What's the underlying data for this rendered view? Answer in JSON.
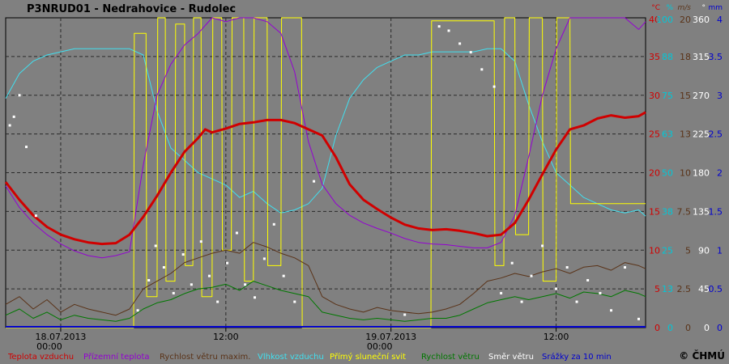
{
  "chart_data": {
    "type": "line",
    "title": "P3NRUD01 - Nedrahovice - Rudolec",
    "x_ticks": [
      {
        "t": 4,
        "label": "18.07.2013",
        "label2": "00:00"
      },
      {
        "t": 16,
        "label": "12:00"
      },
      {
        "t": 28,
        "label": "19.07.2013",
        "label2": "00:00"
      },
      {
        "t": 40,
        "label": "12:00"
      }
    ],
    "x_range_hours": [
      0,
      46.5
    ],
    "y_axes": [
      {
        "unit": "°C",
        "color": "#d00000",
        "ticks": [
          "40",
          "35",
          "30",
          "25",
          "20",
          "15",
          "10",
          "5",
          "0"
        ]
      },
      {
        "unit": "%",
        "color": "#00c8d8",
        "ticks": [
          "100",
          "88",
          "75",
          "63",
          "50",
          "38",
          "25",
          "13",
          "0"
        ]
      },
      {
        "unit": "m/s",
        "color": "#5a3318",
        "ticks": [
          "20",
          "18",
          "15",
          "13",
          "10",
          "7.5",
          "5",
          "2.5",
          "0"
        ]
      },
      {
        "unit": "°",
        "color": "#ffffff",
        "ticks": [
          "360",
          "315",
          "270",
          "225",
          "180",
          "135",
          "90",
          "45",
          "0"
        ]
      },
      {
        "unit": "mm",
        "color": "#0000d0",
        "ticks": [
          "4",
          "3.5",
          "3",
          "2.5",
          "2",
          "1.5",
          "1",
          "0.5",
          "0"
        ]
      }
    ],
    "copyright": "© ČHMÚ",
    "series": [
      {
        "name": "Teplota vzduchu",
        "color": "#d00000",
        "unit": "°C",
        "x": [
          0,
          1,
          2,
          3,
          4,
          5,
          6,
          7,
          8,
          9,
          10,
          11,
          12,
          13,
          14,
          14.5,
          15,
          16,
          17,
          18,
          19,
          20,
          21,
          22,
          23,
          24,
          25,
          26,
          27,
          28,
          29,
          30,
          31,
          32,
          33,
          34,
          35,
          36,
          37,
          38,
          39,
          40,
          41,
          42,
          43,
          44,
          45,
          46,
          46.5
        ],
        "y": [
          18.8,
          16.5,
          14.5,
          13.0,
          12.0,
          11.4,
          11.0,
          10.8,
          10.9,
          12.0,
          14.3,
          17.0,
          20.0,
          22.7,
          24.5,
          25.6,
          25.2,
          25.7,
          26.3,
          26.5,
          26.8,
          26.8,
          26.4,
          25.6,
          24.8,
          22.0,
          18.5,
          16.5,
          15.3,
          14.2,
          13.3,
          12.8,
          12.6,
          12.7,
          12.5,
          12.2,
          11.8,
          12.0,
          13.5,
          16.5,
          19.8,
          23.0,
          25.6,
          26.1,
          27.0,
          27.4,
          27.1,
          27.3,
          27.8
        ]
      },
      {
        "name": "Přízemní teplota",
        "color": "#9400d3",
        "unit": "°C",
        "x": [
          0,
          1,
          2,
          3,
          4,
          5,
          6,
          7,
          8,
          9,
          10,
          11,
          12,
          13,
          14,
          15,
          16,
          17,
          18,
          19,
          20,
          21,
          22,
          23,
          24,
          25,
          26,
          27,
          28,
          29,
          30,
          31,
          32,
          33,
          34,
          35,
          36,
          37,
          38,
          39,
          40,
          41,
          42,
          43,
          44,
          45,
          46,
          46.5
        ],
        "y": [
          18.3,
          15.5,
          13.5,
          12.0,
          10.8,
          9.9,
          9.3,
          9.0,
          9.3,
          9.8,
          21.0,
          30.0,
          34.0,
          36.5,
          38.0,
          40.0,
          39.5,
          40.0,
          40.0,
          39.5,
          38.0,
          33.0,
          24.0,
          18.5,
          16.0,
          14.5,
          13.5,
          12.8,
          12.2,
          11.5,
          11.0,
          10.8,
          10.7,
          10.5,
          10.3,
          10.3,
          11.0,
          14.5,
          22.0,
          30.0,
          36.0,
          40.0,
          40.0,
          40.0,
          40.0,
          40.0,
          38.5,
          39.5
        ]
      },
      {
        "name": "Rychlost větru maxim.",
        "color": "#5a3318",
        "unit": "m/s",
        "x": [
          0,
          1,
          2,
          3,
          4,
          5,
          6,
          7,
          8,
          9,
          10,
          11,
          12,
          13,
          14,
          15,
          16,
          17,
          18,
          19,
          20,
          21,
          22,
          23,
          24,
          25,
          26,
          27,
          28,
          29,
          30,
          31,
          32,
          33,
          34,
          35,
          36,
          37,
          38,
          39,
          40,
          41,
          42,
          43,
          44,
          45,
          46,
          46.5
        ],
        "y": [
          1.5,
          2.0,
          1.2,
          1.8,
          1.0,
          1.5,
          1.2,
          1.0,
          0.8,
          1.2,
          2.5,
          3.0,
          3.5,
          4.2,
          4.5,
          4.8,
          5.0,
          4.8,
          5.5,
          5.2,
          4.8,
          4.5,
          4.0,
          2.0,
          1.5,
          1.2,
          1.0,
          1.3,
          1.1,
          1.0,
          0.9,
          1.0,
          1.2,
          1.5,
          2.2,
          3.0,
          3.2,
          3.5,
          3.3,
          3.6,
          3.8,
          3.5,
          3.9,
          4.0,
          3.7,
          4.2,
          4.0,
          3.8
        ]
      },
      {
        "name": "Vlhkost vzduchu",
        "color": "#40e0f0",
        "unit": "%",
        "x": [
          0,
          1,
          2,
          3,
          4,
          5,
          6,
          7,
          8,
          9,
          10,
          11,
          12,
          13,
          14,
          15,
          16,
          17,
          18,
          19,
          20,
          21,
          22,
          23,
          24,
          25,
          26,
          27,
          28,
          29,
          30,
          31,
          32,
          33,
          34,
          35,
          36,
          37,
          38,
          39,
          40,
          41,
          42,
          43,
          44,
          45,
          46,
          46.5
        ],
        "y": [
          74,
          82,
          86,
          88,
          89,
          90,
          90,
          90,
          90,
          90,
          88,
          70,
          58,
          54,
          50,
          48,
          46,
          42,
          44,
          40,
          37,
          38,
          40,
          45,
          62,
          74,
          80,
          84,
          86,
          88,
          88,
          89,
          89,
          89,
          89,
          90,
          90,
          86,
          72,
          60,
          50,
          46,
          42,
          40,
          38,
          37,
          38,
          36
        ]
      },
      {
        "name": "Přímý sluneční svit",
        "color": "#ffff00",
        "unit": "%",
        "x": [
          0,
          9.3,
          9.35,
          10.2,
          10.25,
          11,
          11.05,
          11.6,
          11.65,
          12.3,
          12.35,
          13,
          13.05,
          13.6,
          13.65,
          14.2,
          14.25,
          15.0,
          15.05,
          15.7,
          15.75,
          16.4,
          16.45,
          17.3,
          17.35,
          18.0,
          18.05,
          19.0,
          19.05,
          20.0,
          20.05,
          21.5,
          21.55,
          30.9,
          30.95,
          35.5,
          35.55,
          36.2,
          36.25,
          37.0,
          37.05,
          38.0,
          38.05,
          39.0,
          39.05,
          40.0,
          40.05,
          41.0,
          41.05,
          46.5
        ],
        "y": [
          0,
          0,
          95,
          95,
          10,
          10,
          100,
          100,
          15,
          15,
          98,
          98,
          20,
          20,
          100,
          100,
          10,
          10,
          100,
          100,
          25,
          25,
          100,
          100,
          15,
          15,
          100,
          100,
          20,
          20,
          100,
          100,
          0,
          0,
          99,
          99,
          20,
          20,
          100,
          100,
          30,
          30,
          100,
          100,
          15,
          15,
          100,
          100,
          40,
          40
        ]
      },
      {
        "name": "Rychlost větru",
        "color": "#007800",
        "unit": "m/s",
        "x": [
          0,
          1,
          2,
          3,
          4,
          5,
          6,
          7,
          8,
          9,
          10,
          11,
          12,
          13,
          14,
          15,
          16,
          17,
          18,
          19,
          20,
          21,
          22,
          23,
          24,
          25,
          26,
          27,
          28,
          29,
          30,
          31,
          32,
          33,
          34,
          35,
          36,
          37,
          38,
          39,
          40,
          41,
          42,
          43,
          44,
          45,
          46,
          46.5
        ],
        "y": [
          0.8,
          1.2,
          0.6,
          1.0,
          0.5,
          0.8,
          0.6,
          0.5,
          0.4,
          0.6,
          1.2,
          1.6,
          1.8,
          2.2,
          2.5,
          2.6,
          2.8,
          2.4,
          3.0,
          2.7,
          2.4,
          2.2,
          2.0,
          1.0,
          0.8,
          0.6,
          0.5,
          0.6,
          0.5,
          0.4,
          0.5,
          0.6,
          0.6,
          0.8,
          1.2,
          1.6,
          1.8,
          2.0,
          1.8,
          2.0,
          2.2,
          1.9,
          2.3,
          2.2,
          2.0,
          2.4,
          2.2,
          2.0
        ]
      }
    ],
    "wind_direction": {
      "name": "Směr větru",
      "color": "#ffffff",
      "unit": "°",
      "x": [
        0.3,
        0.6,
        1.0,
        1.5,
        2.2,
        9.6,
        10.4,
        10.9,
        11.5,
        12.2,
        12.9,
        13.5,
        14.2,
        14.8,
        15.4,
        16.1,
        16.8,
        17.4,
        18.1,
        18.8,
        19.5,
        20.2,
        21.0,
        22.4,
        29.0,
        31.5,
        32.2,
        33.0,
        33.8,
        34.6,
        35.5,
        36.0,
        36.8,
        37.5,
        38.2,
        39.0,
        40.0,
        40.8,
        41.5,
        42.3,
        43.2,
        44.0,
        45.0,
        46.0
      ],
      "y": [
        235,
        245,
        270,
        210,
        130,
        20,
        55,
        95,
        70,
        40,
        85,
        50,
        100,
        60,
        30,
        75,
        110,
        50,
        35,
        80,
        120,
        60,
        30,
        170,
        15,
        350,
        345,
        330,
        320,
        300,
        280,
        40,
        75,
        30,
        60,
        95,
        45,
        70,
        30,
        55,
        40,
        20,
        70,
        10
      ]
    },
    "precipitation": {
      "name": "Srážky za 10 min",
      "color": "#0000d0",
      "unit": "mm",
      "x": [
        0,
        46.5
      ],
      "y": [
        0,
        0
      ]
    }
  }
}
